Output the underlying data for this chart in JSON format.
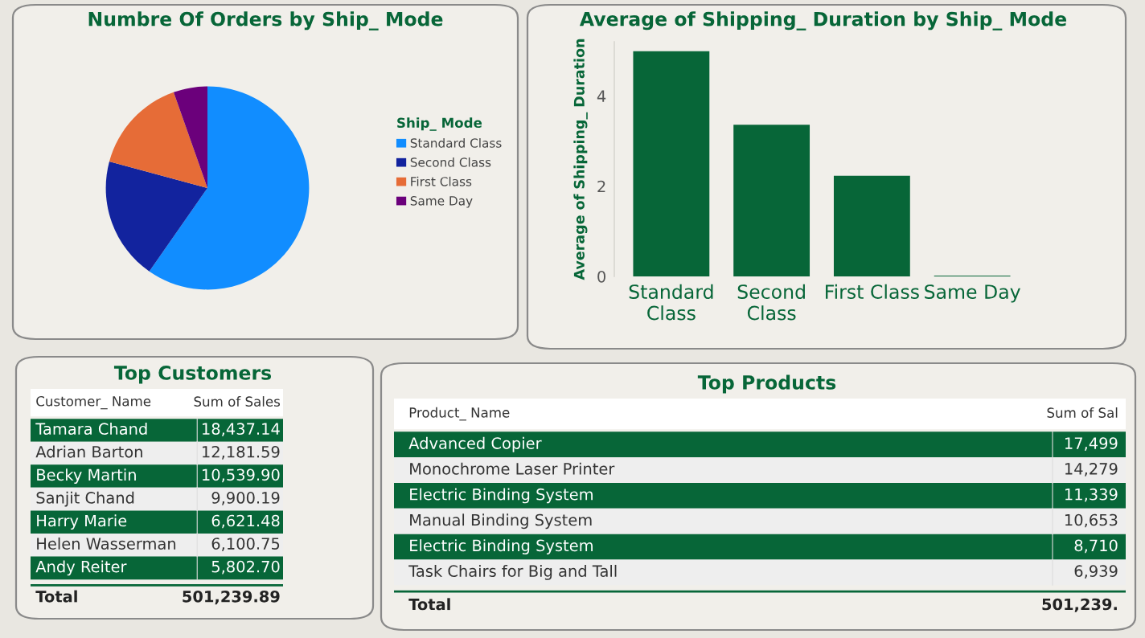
{
  "chart_data": [
    {
      "type": "pie",
      "title": "Numbre Of Orders by Ship_ Mode",
      "legend_title": "Ship_ Mode",
      "legend": "right",
      "categories": [
        "Standard Class",
        "Second Class",
        "First Class",
        "Same Day"
      ],
      "values": [
        59.7,
        19.5,
        15.4,
        5.4
      ],
      "colors": [
        "#118dff",
        "#12239e",
        "#e66c37",
        "#6b007b"
      ]
    },
    {
      "type": "bar",
      "title": "Average of Shipping_ Duration by Ship_ Mode",
      "ylabel": "Average of Shipping_ Duration",
      "categories": [
        "Standard\nClass",
        "Second\nClass",
        "First Class",
        "Same Day"
      ],
      "values": [
        4.99,
        3.36,
        2.23,
        0.02
      ],
      "color": "#076638",
      "ylim": [
        0,
        5.2
      ],
      "yticks": [
        0,
        2,
        4
      ],
      "grid": false
    },
    {
      "type": "other",
      "title": "Top Customers",
      "annotations": [
        "Customer_ Name",
        "Sum of Sales",
        "Total",
        "501,239.89"
      ],
      "categories": [
        "Tamara Chand",
        "Adrian Barton",
        "Becky Martin",
        "Sanjit Chand",
        "Harry Marie",
        "Helen Wasserman",
        "Andy Reiter"
      ],
      "value_labels": [
        "18,437.14",
        "12,181.59",
        "10,539.90",
        "9,900.19",
        "6,621.48",
        "6,100.75",
        "5,802.70"
      ]
    },
    {
      "type": "other",
      "title": "Top Products",
      "annotations": [
        "Product_ Name",
        "Sum of Sal",
        "Total",
        "501,239."
      ],
      "categories": [
        "Advanced Copier",
        "Monochrome Laser Printer",
        "Electric Binding System",
        "Manual Binding System",
        "Electric Binding System",
        "Task Chairs for Big and Tall"
      ],
      "value_labels": [
        "17,499",
        "14,279",
        "11,339",
        "10,653",
        "8,710",
        "6,939"
      ]
    }
  ]
}
